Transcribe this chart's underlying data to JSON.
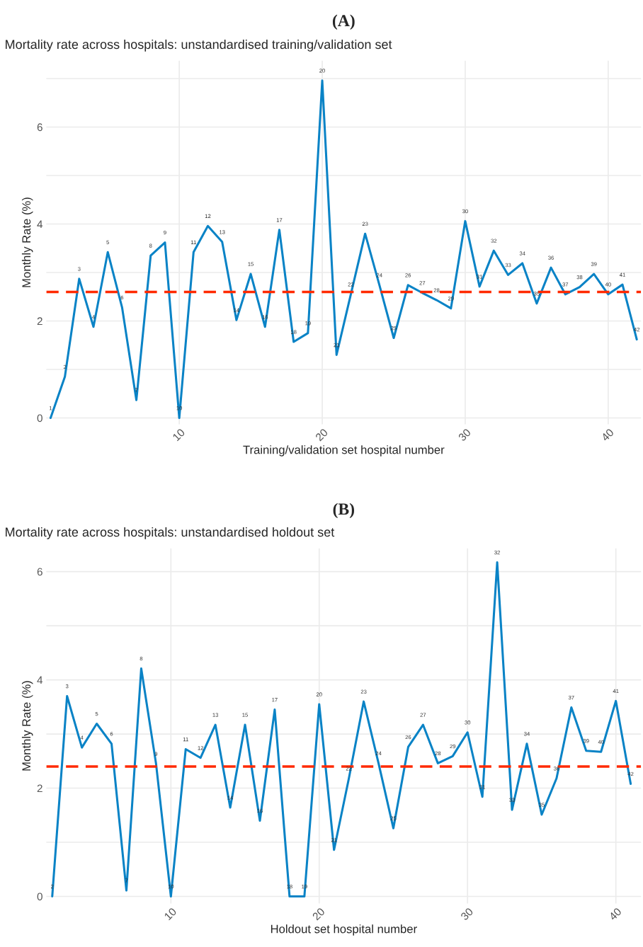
{
  "chart_data": [
    {
      "type": "line",
      "title": "Mortality rate across hospitals: unstandardised training/validation set",
      "xlabel": "Training/validation set hospital number",
      "ylabel": "Monthly Rate (%)",
      "xlim": [
        0.7,
        42.3
      ],
      "xticks": [
        10,
        20,
        30,
        40
      ],
      "ylim": [
        -0.13,
        7.37
      ],
      "yticks": [
        0,
        {
          "value": 1,
          "label": null
        },
        2,
        {
          "value": 3,
          "label": null
        },
        4,
        {
          "value": 5,
          "label": null
        },
        6,
        {
          "value": 7,
          "label": null
        }
      ],
      "grid": true,
      "series": [
        {
          "color": "#0a83c6",
          "x": [
            1,
            2,
            3,
            4,
            5,
            6,
            7,
            8,
            9,
            10,
            11,
            12,
            13,
            14,
            15,
            16,
            17,
            18,
            19,
            20,
            21,
            22,
            23,
            24,
            25,
            26,
            27,
            28,
            29,
            30,
            31,
            32,
            33,
            34,
            35,
            36,
            37,
            38,
            39,
            40,
            41,
            42
          ],
          "values": [
            0.0,
            0.85,
            2.87,
            1.88,
            3.42,
            2.28,
            0.37,
            3.35,
            3.62,
            0.0,
            3.42,
            3.96,
            3.63,
            2.02,
            2.97,
            1.88,
            3.88,
            1.57,
            1.75,
            6.96,
            1.3,
            2.55,
            3.8,
            2.74,
            1.65,
            2.74,
            2.58,
            2.43,
            2.26,
            4.06,
            2.71,
            3.45,
            2.95,
            3.19,
            2.36,
            3.1,
            2.55,
            2.7,
            2.97,
            2.55,
            2.75,
            1.62
          ]
        }
      ],
      "ref_lines": [
        {
          "axis": "y",
          "value": 2.6,
          "color": "#ff2a00",
          "line_style": "dashed"
        }
      ],
      "annotations": [
        "(A)",
        {
          "text": "1",
          "x": 1,
          "y": 0.0
        },
        {
          "text": "2",
          "x": 2,
          "y": 0.85
        },
        {
          "text": "3",
          "x": 3,
          "y": 2.87
        },
        {
          "text": "4",
          "x": 4,
          "y": 1.88
        },
        {
          "text": "5",
          "x": 5,
          "y": 3.42
        },
        {
          "text": "6",
          "x": 6,
          "y": 2.28
        },
        {
          "text": "7",
          "x": 7,
          "y": 0.37
        },
        {
          "text": "8",
          "x": 8,
          "y": 3.35
        },
        {
          "text": "9",
          "x": 9,
          "y": 3.62
        },
        {
          "text": "10",
          "x": 10,
          "y": 0.0
        },
        {
          "text": "11",
          "x": 11,
          "y": 3.42
        },
        {
          "text": "12",
          "x": 12,
          "y": 3.96
        },
        {
          "text": "13",
          "x": 13,
          "y": 3.63
        },
        {
          "text": "14",
          "x": 14,
          "y": 2.02
        },
        {
          "text": "15",
          "x": 15,
          "y": 2.97
        },
        {
          "text": "16",
          "x": 16,
          "y": 1.88
        },
        {
          "text": "17",
          "x": 17,
          "y": 3.88
        },
        {
          "text": "18",
          "x": 18,
          "y": 1.57
        },
        {
          "text": "19",
          "x": 19,
          "y": 1.75
        },
        {
          "text": "20",
          "x": 20,
          "y": 6.96
        },
        {
          "text": "21",
          "x": 21,
          "y": 1.3
        },
        {
          "text": "22",
          "x": 22,
          "y": 2.55
        },
        {
          "text": "23",
          "x": 23,
          "y": 3.8
        },
        {
          "text": "24",
          "x": 24,
          "y": 2.74
        },
        {
          "text": "25",
          "x": 25,
          "y": 1.65
        },
        {
          "text": "26",
          "x": 26,
          "y": 2.74
        },
        {
          "text": "27",
          "x": 27,
          "y": 2.58
        },
        {
          "text": "28",
          "x": 28,
          "y": 2.43
        },
        {
          "text": "29",
          "x": 29,
          "y": 2.26
        },
        {
          "text": "30",
          "x": 30,
          "y": 4.06
        },
        {
          "text": "31",
          "x": 31,
          "y": 2.71
        },
        {
          "text": "32",
          "x": 32,
          "y": 3.45
        },
        {
          "text": "33",
          "x": 33,
          "y": 2.95
        },
        {
          "text": "34",
          "x": 34,
          "y": 3.19
        },
        {
          "text": "35",
          "x": 35,
          "y": 2.36
        },
        {
          "text": "36",
          "x": 36,
          "y": 3.1
        },
        {
          "text": "37",
          "x": 37,
          "y": 2.55
        },
        {
          "text": "38",
          "x": 38,
          "y": 2.7
        },
        {
          "text": "39",
          "x": 39,
          "y": 2.97
        },
        {
          "text": "40",
          "x": 40,
          "y": 2.55
        },
        {
          "text": "41",
          "x": 41,
          "y": 2.75
        },
        {
          "text": "42",
          "x": 42,
          "y": 1.62
        }
      ]
    },
    {
      "type": "line",
      "title": "Mortality rate across hospitals: unstandardised holdout set",
      "xlabel": "Holdout set hospital number",
      "ylabel": "Monthly Rate (%)",
      "xlim": [
        1.6,
        41.7
      ],
      "xticks": [
        10,
        20,
        30,
        40
      ],
      "ylim": [
        -0.13,
        6.43
      ],
      "yticks": [
        0,
        {
          "value": 1,
          "label": null
        },
        2,
        {
          "value": 3,
          "label": null
        },
        4,
        {
          "value": 5,
          "label": null
        },
        6
      ],
      "grid": true,
      "series": [
        {
          "color": "#0a83c6",
          "x": [
            2,
            3,
            4,
            5,
            6,
            7,
            8,
            9,
            10,
            11,
            12,
            13,
            14,
            15,
            16,
            17,
            18,
            19,
            20,
            21,
            22,
            23,
            24,
            25,
            26,
            27,
            28,
            29,
            30,
            31,
            32,
            33,
            34,
            35,
            36,
            37,
            38,
            39,
            40,
            41
          ],
          "values": [
            0.0,
            3.7,
            2.75,
            3.19,
            2.82,
            0.11,
            4.21,
            2.45,
            0.0,
            2.72,
            2.56,
            3.17,
            1.64,
            3.17,
            1.4,
            3.45,
            0.0,
            0.0,
            3.55,
            0.86,
            2.18,
            3.6,
            2.46,
            1.26,
            2.76,
            3.17,
            2.46,
            2.59,
            3.03,
            1.84,
            6.17,
            1.6,
            2.82,
            1.51,
            2.18,
            3.49,
            2.69,
            2.67,
            3.61,
            2.08
          ]
        }
      ],
      "ref_lines": [
        {
          "axis": "y",
          "value": 2.4,
          "color": "#ff2a00",
          "line_style": "dashed"
        }
      ],
      "annotations": [
        "(B)",
        {
          "text": "2",
          "x": 2,
          "y": 0.0
        },
        {
          "text": "3",
          "x": 3,
          "y": 3.7
        },
        {
          "text": "4",
          "x": 4,
          "y": 2.75
        },
        {
          "text": "5",
          "x": 5,
          "y": 3.19
        },
        {
          "text": "6",
          "x": 6,
          "y": 2.82
        },
        {
          "text": "7",
          "x": 7,
          "y": 0.11
        },
        {
          "text": "8",
          "x": 8,
          "y": 4.21
        },
        {
          "text": "9",
          "x": 9,
          "y": 2.45
        },
        {
          "text": "10",
          "x": 10,
          "y": 0.0
        },
        {
          "text": "11",
          "x": 11,
          "y": 2.72
        },
        {
          "text": "12",
          "x": 12,
          "y": 2.56
        },
        {
          "text": "13",
          "x": 13,
          "y": 3.17
        },
        {
          "text": "14",
          "x": 14,
          "y": 1.64
        },
        {
          "text": "15",
          "x": 15,
          "y": 3.17
        },
        {
          "text": "16",
          "x": 16,
          "y": 1.4
        },
        {
          "text": "17",
          "x": 17,
          "y": 3.45
        },
        {
          "text": "18",
          "x": 18,
          "y": 0.0
        },
        {
          "text": "19",
          "x": 19,
          "y": 0.0
        },
        {
          "text": "20",
          "x": 20,
          "y": 3.55
        },
        {
          "text": "21",
          "x": 21,
          "y": 0.86
        },
        {
          "text": "22",
          "x": 22,
          "y": 2.18
        },
        {
          "text": "23",
          "x": 23,
          "y": 3.6
        },
        {
          "text": "24",
          "x": 24,
          "y": 2.46
        },
        {
          "text": "25",
          "x": 25,
          "y": 1.26
        },
        {
          "text": "26",
          "x": 26,
          "y": 2.76
        },
        {
          "text": "27",
          "x": 27,
          "y": 3.17
        },
        {
          "text": "28",
          "x": 28,
          "y": 2.46
        },
        {
          "text": "29",
          "x": 29,
          "y": 2.59
        },
        {
          "text": "30",
          "x": 30,
          "y": 3.03
        },
        {
          "text": "31",
          "x": 31,
          "y": 1.84
        },
        {
          "text": "32",
          "x": 32,
          "y": 6.17
        },
        {
          "text": "33",
          "x": 33,
          "y": 1.6
        },
        {
          "text": "34",
          "x": 34,
          "y": 2.82
        },
        {
          "text": "35",
          "x": 35,
          "y": 1.51
        },
        {
          "text": "36",
          "x": 36,
          "y": 2.18
        },
        {
          "text": "37",
          "x": 37,
          "y": 3.49
        },
        {
          "text": "39",
          "x": 38,
          "y": 2.69
        },
        {
          "text": "40",
          "x": 39,
          "y": 2.67
        },
        {
          "text": "41",
          "x": 40,
          "y": 3.61
        },
        {
          "text": "42",
          "x": 41,
          "y": 2.08
        }
      ]
    }
  ]
}
